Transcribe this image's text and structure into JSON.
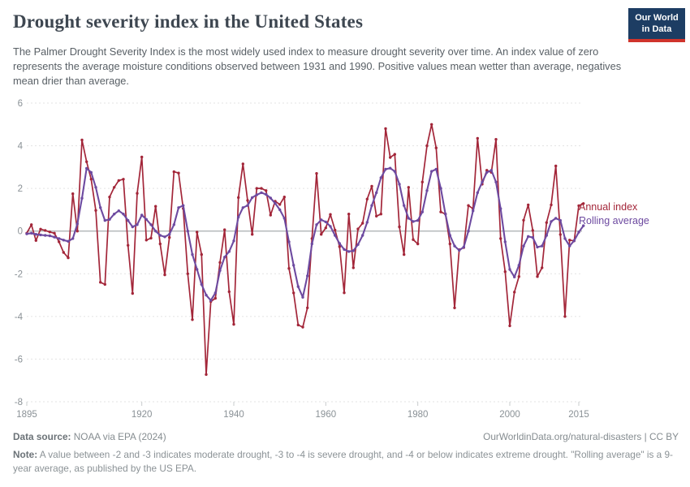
{
  "header": {
    "title": "Drought severity index in the United States",
    "logo": {
      "line1": "Our World",
      "line2": "in Data"
    }
  },
  "subtitle": "The Palmer Drought Severity Index is the most widely used index to measure drought severity over time. An index value of zero represents the average moisture conditions observed between 1931 and 1990. Positive values mean wetter than average, negatives mean drier than average.",
  "footer": {
    "source_label": "Data source:",
    "source_text": " NOAA via EPA (2024)",
    "credit": "OurWorldinData.org/natural-disasters | CC BY",
    "note_label": "Note:",
    "note_text": " A value between -2 and -3 indicates moderate drought, -3 to -4 is severe drought, and -4 or below indicates extreme drought. \"Rolling average\" is a 9-year average, as published by the US EPA."
  },
  "colors": {
    "annual": "#a32639",
    "rolling": "#6d4aa0",
    "logo_navy": "#1d3d63",
    "logo_red": "#d0342c",
    "grid": "#e3e3e3",
    "zero_line": "#b0b4b6",
    "axis_text": "#8a9196",
    "tick": "#c8cccd"
  },
  "chart_data": {
    "type": "line",
    "title": "Drought severity index in the United States",
    "xlabel": "",
    "ylabel": "",
    "x_start": 1895,
    "x_end": 2016,
    "ylim": [
      -8,
      6
    ],
    "yticks": [
      6,
      4,
      2,
      0,
      -2,
      -4,
      -6,
      -8
    ],
    "xticks": [
      1895,
      1920,
      1940,
      1960,
      1980,
      2000,
      2015
    ],
    "grid": "dashed horizontal",
    "legend_position": "right end of lines",
    "series": [
      {
        "name": "Annual index",
        "color": "#a32639",
        "values": [
          -0.1,
          0.3,
          -0.44,
          0.09,
          0.03,
          -0.04,
          -0.1,
          -0.5,
          -1.0,
          -1.25,
          1.75,
          0.0,
          4.27,
          3.25,
          2.43,
          0.97,
          -2.4,
          -2.5,
          1.6,
          2.05,
          2.37,
          2.43,
          -0.67,
          -2.92,
          1.77,
          3.47,
          -0.42,
          -0.33,
          1.16,
          -0.6,
          -2.05,
          -0.3,
          2.78,
          2.72,
          1.06,
          -2.0,
          -4.15,
          -0.05,
          -1.1,
          -6.72,
          -3.3,
          -3.15,
          -1.47,
          0.06,
          -2.84,
          -4.37,
          1.57,
          3.15,
          1.44,
          -0.15,
          2.0,
          2.0,
          1.9,
          0.75,
          1.4,
          1.25,
          1.6,
          -1.75,
          -2.9,
          -4.4,
          -4.5,
          -3.6,
          -0.35,
          2.7,
          -0.15,
          0.15,
          0.78,
          0.05,
          -0.73,
          -2.89,
          0.8,
          -1.72,
          0.1,
          0.37,
          1.5,
          2.1,
          0.7,
          0.8,
          4.8,
          3.45,
          3.6,
          0.2,
          -1.1,
          2.05,
          -0.4,
          -0.6,
          2.3,
          4.0,
          5.0,
          3.9,
          0.9,
          0.8,
          -0.6,
          -3.6,
          -0.87,
          -0.77,
          1.2,
          1.05,
          4.35,
          2.2,
          2.85,
          2.75,
          4.3,
          -0.35,
          -1.9,
          -4.44,
          -2.86,
          -2.13,
          0.51,
          1.23,
          0.03,
          -2.13,
          -1.72,
          0.4,
          1.23,
          3.05,
          -0.16,
          -4.0,
          -0.42,
          -0.46,
          1.19,
          1.29
        ]
      },
      {
        "name": "Rolling average",
        "color": "#6d4aa0",
        "values": [
          -0.13,
          -0.1,
          -0.15,
          -0.18,
          -0.2,
          -0.22,
          -0.28,
          -0.35,
          -0.42,
          -0.48,
          -0.35,
          0.34,
          1.54,
          2.94,
          2.75,
          2.05,
          1.1,
          0.5,
          0.55,
          0.8,
          0.95,
          0.8,
          0.5,
          0.2,
          0.3,
          0.75,
          0.55,
          0.3,
          0.0,
          -0.2,
          -0.27,
          -0.15,
          0.3,
          1.1,
          1.2,
          0.0,
          -1.1,
          -1.8,
          -2.5,
          -3.0,
          -3.25,
          -2.9,
          -1.85,
          -1.22,
          -0.96,
          -0.46,
          0.66,
          1.1,
          1.2,
          1.57,
          1.7,
          1.8,
          1.72,
          1.55,
          1.3,
          1.0,
          0.6,
          -0.5,
          -1.6,
          -2.6,
          -3.1,
          -2.1,
          -0.6,
          0.3,
          0.53,
          0.43,
          0.22,
          -0.2,
          -0.58,
          -0.86,
          -0.96,
          -0.92,
          -0.63,
          -0.2,
          0.41,
          1.2,
          1.8,
          2.5,
          2.9,
          2.95,
          2.8,
          2.2,
          1.2,
          0.6,
          0.45,
          0.5,
          0.9,
          1.9,
          2.8,
          2.9,
          2.0,
          0.8,
          -0.2,
          -0.7,
          -0.9,
          -0.75,
          0.0,
          0.95,
          1.8,
          2.3,
          2.75,
          2.85,
          2.3,
          1.05,
          -0.5,
          -1.8,
          -2.15,
          -1.6,
          -0.7,
          -0.25,
          -0.3,
          -0.75,
          -0.7,
          -0.2,
          0.45,
          0.6,
          0.5,
          -0.35,
          -0.7,
          -0.45,
          -0.05,
          0.25
        ]
      }
    ]
  }
}
